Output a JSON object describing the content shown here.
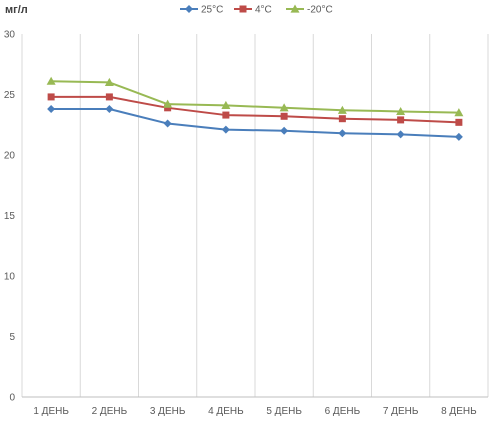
{
  "chart_data": {
    "type": "line",
    "ylabel": "мг/л",
    "xlabel": "",
    "title": "",
    "categories": [
      "1 ДЕНЬ",
      "2 ДЕНЬ",
      "3 ДЕНЬ",
      "4 ДЕНЬ",
      "5 ДЕНЬ",
      "6 ДЕНЬ",
      "7 ДЕНЬ",
      "8 ДЕНЬ"
    ],
    "ylim": [
      0,
      30
    ],
    "yticks": [
      0,
      5,
      10,
      15,
      20,
      25,
      30
    ],
    "grid": "vertical",
    "legend_position": "top-center",
    "series": [
      {
        "name": "25°C",
        "color": "#4a7ebb",
        "marker": "diamond",
        "values": [
          23.8,
          23.8,
          22.6,
          22.1,
          22.0,
          21.8,
          21.7,
          21.5
        ]
      },
      {
        "name": "4°C",
        "color": "#be4b48",
        "marker": "square",
        "values": [
          24.8,
          24.8,
          23.9,
          23.3,
          23.2,
          23.0,
          22.9,
          22.7
        ]
      },
      {
        "name": "-20°C",
        "color": "#98b954",
        "marker": "triangle",
        "values": [
          26.1,
          26.0,
          24.2,
          24.1,
          23.9,
          23.7,
          23.6,
          23.5
        ]
      }
    ]
  }
}
